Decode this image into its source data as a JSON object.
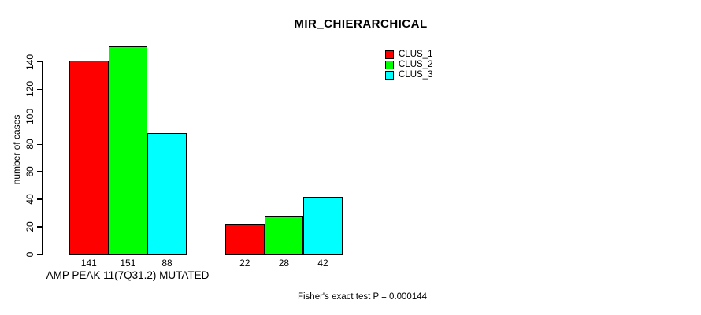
{
  "chart_data": {
    "type": "bar",
    "title": "MIR_CHIERARCHICAL",
    "ylabel": "number of cases",
    "xlabel": "",
    "ylim": [
      0,
      140
    ],
    "ytick_interval": 20,
    "yticks": [
      0,
      20,
      40,
      60,
      80,
      100,
      120,
      140
    ],
    "grid": false,
    "categories": [
      "AMP PEAK 11(7Q31.2) MUTATED",
      ""
    ],
    "series": [
      {
        "name": "CLUS_1",
        "color": "#ff0000",
        "values": [
          141,
          22
        ]
      },
      {
        "name": "CLUS_2",
        "color": "#00ff00",
        "values": [
          151,
          28
        ]
      },
      {
        "name": "CLUS_3",
        "color": "#00ffff",
        "values": [
          88,
          42
        ]
      }
    ],
    "bar_value_labels": [
      [
        141,
        151,
        88
      ],
      [
        22,
        28,
        42
      ]
    ],
    "legend": {
      "position": "top-right",
      "entries": [
        {
          "label": "CLUS_1",
          "color": "#ff0000"
        },
        {
          "label": "CLUS_2",
          "color": "#00ff00"
        },
        {
          "label": "CLUS_3",
          "color": "#00ffff"
        }
      ]
    },
    "annotation": "Fisher's exact test P = 0.000144"
  },
  "colors": {
    "background": "#ffffff",
    "axis": "#000000",
    "text": "#000000"
  }
}
